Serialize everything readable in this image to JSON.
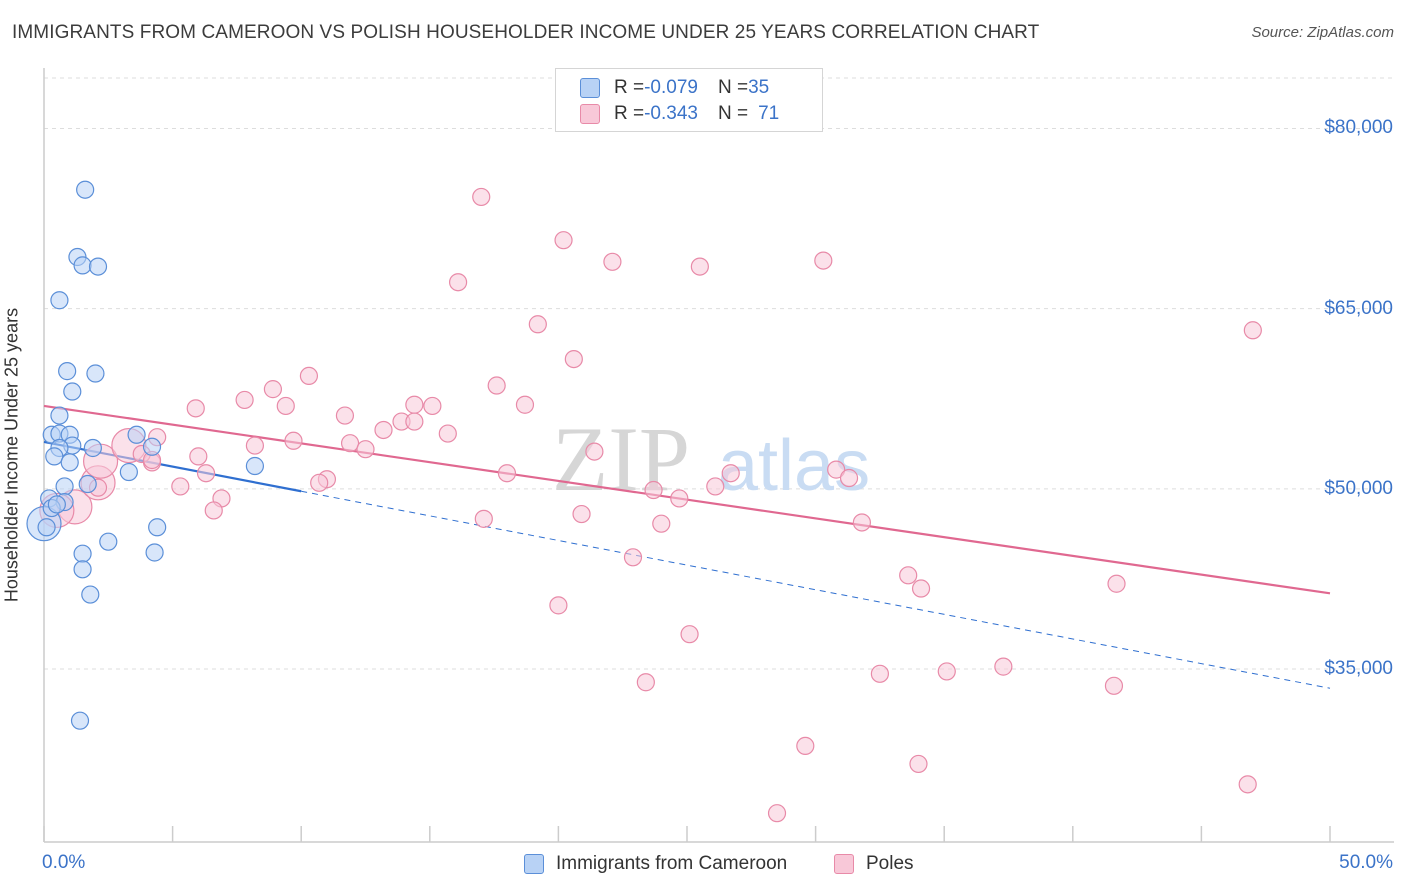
{
  "title": "IMMIGRANTS FROM CAMEROON VS POLISH HOUSEHOLDER INCOME UNDER 25 YEARS CORRELATION CHART",
  "source": "Source: ZipAtlas.com",
  "watermark": {
    "zip": "ZIP",
    "atlas": "atlas"
  },
  "legend": {
    "rows": [
      {
        "r_label": "R = ",
        "r_value": "-0.079",
        "n_label": "N = ",
        "n_value": "35"
      },
      {
        "r_label": "R = ",
        "r_value": "-0.343",
        "n_label": "N = ",
        "n_value": "71"
      }
    ]
  },
  "colors": {
    "cameroon_fill": "#b8d2f5",
    "cameroon_stroke": "#5b8fd8",
    "cameroon_line": "#2f6fd0",
    "poles_fill": "#f8c8d8",
    "poles_stroke": "#e88aa8",
    "poles_line": "#e06890",
    "axis_text": "#3b73c8",
    "grid": "#dddddd"
  },
  "chart_data": {
    "type": "scatter",
    "title": "IMMIGRANTS FROM CAMEROON VS POLISH HOUSEHOLDER INCOME UNDER 25 YEARS CORRELATION CHART",
    "xlabel": "",
    "ylabel": "Householder Income Under 25 years",
    "xlim": [
      0,
      50
    ],
    "ylim": [
      20600,
      84200
    ],
    "x_tick_labels": [
      "0.0%",
      "50.0%"
    ],
    "y_ticks": [
      35000,
      50000,
      65000,
      80000
    ],
    "y_tick_labels": [
      "$35,000",
      "$50,000",
      "$65,000",
      "$80,000"
    ],
    "grid": true,
    "legend_position": "top-center",
    "series": [
      {
        "name": "Immigrants from Cameroon",
        "trend": {
          "x0": 0.0,
          "y0": 53900,
          "x1": 10.0,
          "y1": 49800,
          "dashed_to_x": 50.0,
          "dashed_to_y": 33400
        },
        "points": [
          [
            1.6,
            74900
          ],
          [
            1.3,
            69300
          ],
          [
            1.5,
            68600
          ],
          [
            2.1,
            68500
          ],
          [
            0.6,
            65700
          ],
          [
            0.9,
            59800
          ],
          [
            2.0,
            59600
          ],
          [
            1.1,
            58100
          ],
          [
            0.6,
            56100
          ],
          [
            0.3,
            54500
          ],
          [
            0.6,
            54600
          ],
          [
            1.0,
            54500
          ],
          [
            3.6,
            54500
          ],
          [
            1.1,
            53600
          ],
          [
            0.6,
            53400
          ],
          [
            1.9,
            53400
          ],
          [
            4.2,
            53500
          ],
          [
            0.4,
            52700
          ],
          [
            1.0,
            52200
          ],
          [
            8.2,
            51900
          ],
          [
            3.3,
            51400
          ],
          [
            1.7,
            50400
          ],
          [
            0.8,
            50200
          ],
          [
            0.2,
            49200
          ],
          [
            0.8,
            48900
          ],
          [
            0.3,
            48400
          ],
          [
            0.5,
            48700
          ],
          [
            0.1,
            46800
          ],
          [
            4.4,
            46800
          ],
          [
            2.5,
            45600
          ],
          [
            1.5,
            44600
          ],
          [
            4.3,
            44700
          ],
          [
            1.5,
            43300
          ],
          [
            1.8,
            41200
          ],
          [
            1.4,
            30700
          ]
        ],
        "large_points": [
          [
            0.0,
            47100
          ]
        ]
      },
      {
        "name": "Poles",
        "trend": {
          "x0": 0.0,
          "y0": 56900,
          "x1": 50.0,
          "y1": 41300
        },
        "points": [
          [
            17.0,
            74300
          ],
          [
            20.2,
            70700
          ],
          [
            22.1,
            68900
          ],
          [
            25.5,
            68500
          ],
          [
            30.3,
            69000
          ],
          [
            16.1,
            67200
          ],
          [
            19.2,
            63700
          ],
          [
            47.0,
            63200
          ],
          [
            20.6,
            60800
          ],
          [
            10.3,
            59400
          ],
          [
            17.6,
            58600
          ],
          [
            8.9,
            58300
          ],
          [
            7.8,
            57400
          ],
          [
            5.9,
            56700
          ],
          [
            9.4,
            56900
          ],
          [
            14.4,
            57000
          ],
          [
            15.1,
            56900
          ],
          [
            18.7,
            57000
          ],
          [
            11.7,
            56100
          ],
          [
            13.9,
            55600
          ],
          [
            14.4,
            55600
          ],
          [
            13.2,
            54900
          ],
          [
            15.7,
            54600
          ],
          [
            4.4,
            54300
          ],
          [
            9.7,
            54000
          ],
          [
            11.9,
            53800
          ],
          [
            8.2,
            53600
          ],
          [
            12.5,
            53300
          ],
          [
            21.4,
            53100
          ],
          [
            6.0,
            52700
          ],
          [
            4.2,
            52200
          ],
          [
            3.8,
            52900
          ],
          [
            4.2,
            52400
          ],
          [
            30.8,
            51600
          ],
          [
            6.3,
            51300
          ],
          [
            18.0,
            51300
          ],
          [
            11.0,
            50800
          ],
          [
            26.7,
            51300
          ],
          [
            31.3,
            50900
          ],
          [
            10.7,
            50500
          ],
          [
            5.3,
            50200
          ],
          [
            26.1,
            50200
          ],
          [
            23.7,
            49900
          ],
          [
            2.1,
            50100
          ],
          [
            6.9,
            49200
          ],
          [
            24.7,
            49200
          ],
          [
            6.6,
            48200
          ],
          [
            20.9,
            47900
          ],
          [
            17.1,
            47500
          ],
          [
            24.0,
            47100
          ],
          [
            31.8,
            47200
          ],
          [
            22.9,
            44300
          ],
          [
            33.6,
            42800
          ],
          [
            34.1,
            41700
          ],
          [
            41.7,
            42100
          ],
          [
            20.0,
            40300
          ],
          [
            25.1,
            37900
          ],
          [
            32.5,
            34600
          ],
          [
            23.4,
            33900
          ],
          [
            35.1,
            34800
          ],
          [
            37.3,
            35200
          ],
          [
            41.6,
            33600
          ],
          [
            29.6,
            28600
          ],
          [
            34.0,
            27100
          ],
          [
            46.8,
            25400
          ],
          [
            28.5,
            23000
          ]
        ],
        "large_points": [
          [
            1.2,
            48500
          ],
          [
            2.1,
            50500
          ],
          [
            2.2,
            52300
          ],
          [
            3.3,
            53600
          ],
          [
            0.5,
            48200
          ]
        ]
      }
    ]
  },
  "bottom_legend": [
    "Immigrants from Cameroon",
    "Poles"
  ]
}
